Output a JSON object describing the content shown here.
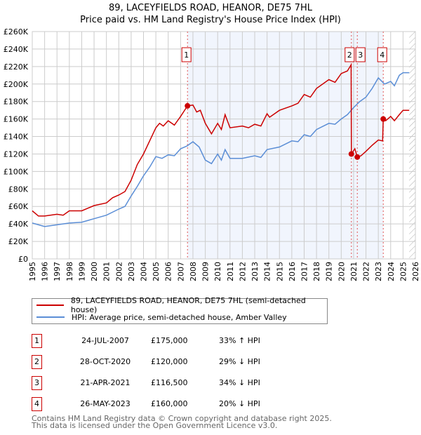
{
  "chart_data": {
    "type": "line",
    "title": "89, LACEYFIELDS ROAD, HEANOR, DE75 7HL",
    "subtitle": "Price paid vs. HM Land Registry's House Price Index (HPI)",
    "xlim": [
      1995,
      2026
    ],
    "ylim": [
      0,
      260000
    ],
    "grid": true,
    "x_ticks": [
      "1995",
      "1996",
      "1997",
      "1998",
      "1999",
      "2000",
      "2001",
      "2002",
      "2003",
      "2004",
      "2005",
      "2006",
      "2007",
      "2008",
      "2009",
      "2010",
      "2011",
      "2012",
      "2013",
      "2014",
      "2015",
      "2016",
      "2017",
      "2018",
      "2019",
      "2020",
      "2021",
      "2022",
      "2023",
      "2024",
      "2025",
      "2026"
    ],
    "y_ticks": [
      "£0",
      "£20K",
      "£40K",
      "£60K",
      "£80K",
      "£100K",
      "£120K",
      "£140K",
      "£160K",
      "£180K",
      "£200K",
      "£220K",
      "£240K",
      "£260K"
    ],
    "shaded_range": [
      2007.56,
      2023.4
    ],
    "hatched_from": 2025.5,
    "series": [
      {
        "name": "89, LACEYFIELDS ROAD, HEANOR, DE75 7HL (semi-detached house)",
        "color": "#cc0000",
        "x": [
          1995,
          1995.5,
          1996,
          1997,
          1997.5,
          1998,
          1999,
          2000,
          2001,
          2001.5,
          2002,
          2002.5,
          2003,
          2003.5,
          2004,
          2004.5,
          2005,
          2005.3,
          2005.6,
          2006,
          2006.5,
          2007,
          2007.56,
          2008,
          2008.3,
          2008.6,
          2009,
          2009.5,
          2010,
          2010.3,
          2010.6,
          2011,
          2012,
          2012.5,
          2013,
          2013.5,
          2014,
          2014.2,
          2015,
          2016,
          2016.5,
          2017,
          2017.5,
          2018,
          2019,
          2019.5,
          2020,
          2020.5,
          2020.8,
          2020.82,
          2021.1,
          2021.3,
          2021.6,
          2022,
          2022.5,
          2023,
          2023.35,
          2023.4,
          2023.6,
          2024,
          2024.3,
          2024.7,
          2025,
          2025.5
        ],
        "y": [
          55000,
          49000,
          49000,
          51000,
          50000,
          55000,
          55000,
          61000,
          64000,
          70000,
          73000,
          77000,
          90000,
          108000,
          120000,
          135000,
          150000,
          155000,
          152000,
          158000,
          153000,
          163000,
          175000,
          176000,
          168000,
          170000,
          155000,
          143000,
          155000,
          148000,
          165000,
          150000,
          152000,
          150000,
          154000,
          152000,
          166000,
          162000,
          170000,
          175000,
          178000,
          188000,
          185000,
          195000,
          205000,
          202000,
          212000,
          215000,
          222000,
          120000,
          126000,
          116500,
          118000,
          123000,
          130000,
          136000,
          135000,
          160000,
          158000,
          163000,
          158000,
          165000,
          170000,
          170000
        ]
      },
      {
        "name": "HPI: Average price, semi-detached house, Amber Valley",
        "color": "#5b8ed6",
        "x": [
          1995,
          1996,
          1997,
          1998,
          1999,
          2000,
          2001,
          2002,
          2002.5,
          2003,
          2003.5,
          2004,
          2004.5,
          2005,
          2005.5,
          2006,
          2006.5,
          2007,
          2007.5,
          2008,
          2008.5,
          2009,
          2009.5,
          2010,
          2010.3,
          2010.6,
          2011,
          2012,
          2013,
          2013.5,
          2014,
          2015,
          2016,
          2016.5,
          2017,
          2017.5,
          2018,
          2019,
          2019.5,
          2020,
          2020.5,
          2021,
          2021.5,
          2022,
          2022.5,
          2023,
          2023.5,
          2024,
          2024.3,
          2024.7,
          2025,
          2025.5
        ],
        "y": [
          41000,
          37000,
          39000,
          41000,
          42000,
          46000,
          50000,
          57000,
          60000,
          72000,
          83000,
          95000,
          105000,
          117000,
          115000,
          119000,
          118000,
          126000,
          129000,
          134000,
          128000,
          113000,
          109000,
          120000,
          113000,
          125000,
          115000,
          115000,
          118000,
          116000,
          125000,
          128000,
          135000,
          134000,
          142000,
          140000,
          148000,
          155000,
          154000,
          160000,
          165000,
          173000,
          180000,
          185000,
          195000,
          207000,
          200000,
          203000,
          198000,
          210000,
          213000,
          213000
        ]
      }
    ],
    "sales": [
      {
        "num": "1",
        "x": 2007.56,
        "y": 175000
      },
      {
        "num": "2",
        "x": 2020.82,
        "y": 120000
      },
      {
        "num": "3",
        "x": 2021.3,
        "y": 116500
      },
      {
        "num": "4",
        "x": 2023.4,
        "y": 160000
      }
    ]
  },
  "legend": {
    "property": "89, LACEYFIELDS ROAD, HEANOR, DE75 7HL (semi-detached house)",
    "hpi": "HPI: Average price, semi-detached house, Amber Valley"
  },
  "table": [
    {
      "num": "1",
      "date": "24-JUL-2007",
      "price": "£175,000",
      "hpi": "33% ↑ HPI"
    },
    {
      "num": "2",
      "date": "28-OCT-2020",
      "price": "£120,000",
      "hpi": "29% ↓ HPI"
    },
    {
      "num": "3",
      "date": "21-APR-2021",
      "price": "£116,500",
      "hpi": "34% ↓ HPI"
    },
    {
      "num": "4",
      "date": "26-MAY-2023",
      "price": "£160,000",
      "hpi": "20% ↓ HPI"
    }
  ],
  "footer": {
    "line1": "Contains HM Land Registry data © Crown copyright and database right 2025.",
    "line2": "This data is licensed under the Open Government Licence v3.0."
  }
}
